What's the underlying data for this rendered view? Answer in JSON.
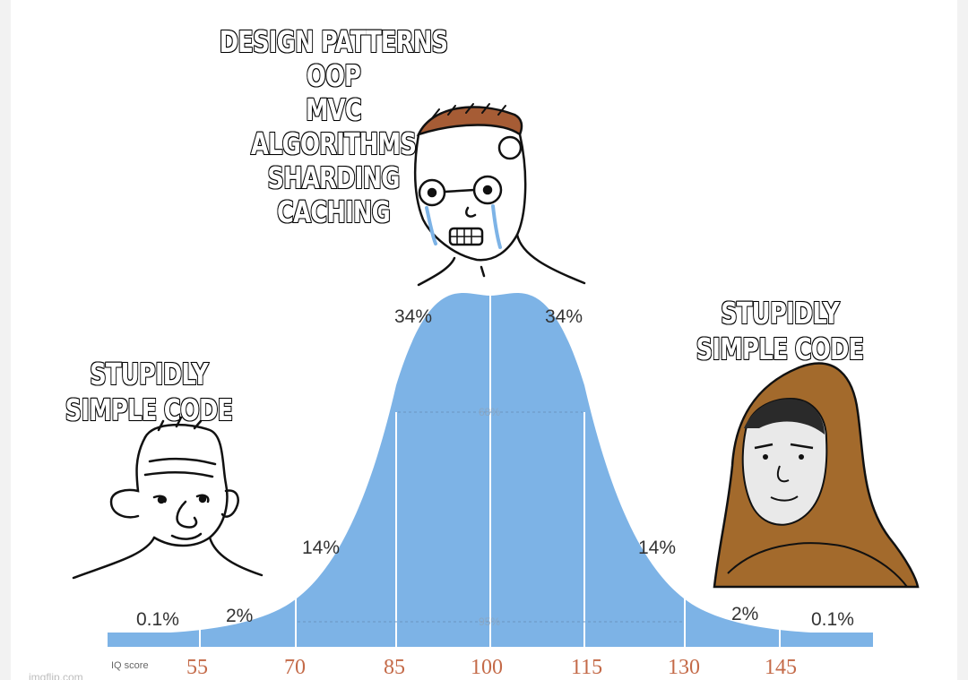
{
  "captions": {
    "middle": [
      "DESIGN PATTERNS",
      "OOP",
      "MVC",
      "ALGORITHMS",
      "SHARDING",
      "CACHING"
    ],
    "left": [
      "STUPIDLY",
      "SIMPLE CODE"
    ],
    "right": [
      "STUPIDLY",
      "SIMPLE CODE"
    ]
  },
  "curve": {
    "percentages": {
      "far_left": "0.1%",
      "left_tail": "2%",
      "left_shoulder": "14%",
      "left_center": "34%",
      "right_center": "34%",
      "right_shoulder": "14%",
      "right_tail": "2%",
      "far_right": "0.1%"
    },
    "band_68": "68%",
    "band_95": "95%",
    "axis_label": "IQ score",
    "ticks": [
      "55",
      "70",
      "85",
      "100",
      "115",
      "130",
      "145"
    ],
    "fill_color": "#7db3e6"
  },
  "characters": {
    "left": "wojak-simple-icon",
    "middle": "wojak-crying-glasses-icon",
    "right": "hooded-jedi-icon"
  },
  "watermark": "imgflip.com"
}
